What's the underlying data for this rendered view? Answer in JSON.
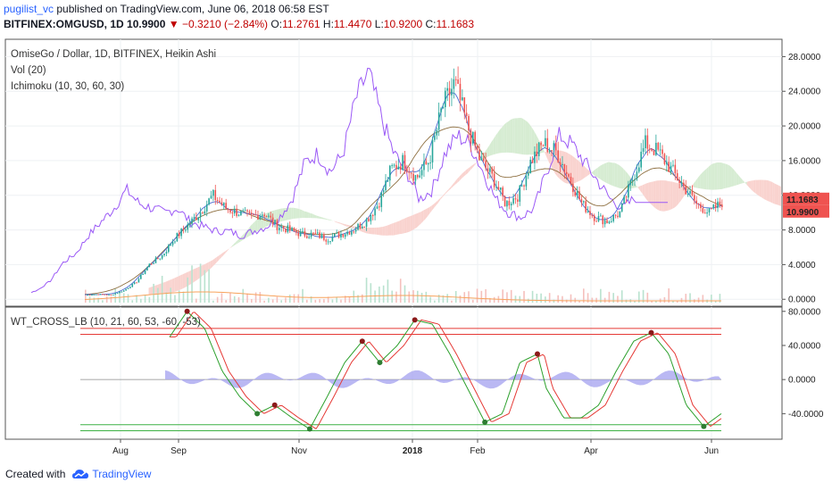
{
  "header": {
    "author": "pugilist_vc",
    "published": "published on TradingView.com, June 06, 2018 06:58 EST",
    "symbol": "BITFINEX:OMGUSD, 1D",
    "close_value": "10.9900",
    "change_arrow": "▼",
    "change": "−0.3210 (−2.84%)",
    "o_label": "O:",
    "o_value": "11.2761",
    "h_label": "H:",
    "h_value": "11.4470",
    "l_label": "L:",
    "l_value": "10.9200",
    "c_label": "C:",
    "c_value": "11.1683"
  },
  "footer": {
    "created_with": "Created with",
    "brand": "TradingView"
  },
  "colors": {
    "up": "#26a69a",
    "down": "#ef5350",
    "purple": "#9b59f6",
    "cloud_green": "#d6ecd2",
    "cloud_red": "#f9d3cf",
    "volume_orange": "#f7a35c",
    "wt_green": "#2ca02c",
    "wt_red": "#e53935",
    "band_red": "#e53935",
    "band_green": "#3cb043"
  },
  "chart_data": [
    {
      "type": "candlestick",
      "title": "OmiseGo / Dollar, 1D, BITFINEX, Heikin Ashi",
      "indicators": [
        "Vol (20)",
        "Ichimoku (10, 30, 60, 30)"
      ],
      "y_ticks": [
        "28.0000",
        "24.0000",
        "20.0000",
        "16.0000",
        "12.0000",
        "8.0000",
        "4.0000",
        "0.0000"
      ],
      "ylim": [
        -0.8,
        30
      ],
      "last_close_label": "11.1683",
      "last_low_label": "10.9900",
      "x_labels": [
        "Aug",
        "Sep",
        "Nov",
        "2018",
        "Feb",
        "Apr",
        "Jun"
      ],
      "price_path": [
        [
          0.0,
          0.5
        ],
        [
          0.02,
          0.6
        ],
        [
          0.04,
          0.5
        ],
        [
          0.06,
          1.0
        ],
        [
          0.08,
          2.0
        ],
        [
          0.1,
          4.0
        ],
        [
          0.12,
          5.0
        ],
        [
          0.14,
          7.0
        ],
        [
          0.16,
          8.5
        ],
        [
          0.18,
          10.0
        ],
        [
          0.2,
          12.0
        ],
        [
          0.22,
          10.5
        ],
        [
          0.24,
          10.0
        ],
        [
          0.26,
          9.5
        ],
        [
          0.28,
          10.0
        ],
        [
          0.3,
          8.5
        ],
        [
          0.32,
          8.0
        ],
        [
          0.34,
          7.5
        ],
        [
          0.36,
          7.5
        ],
        [
          0.38,
          7.0
        ],
        [
          0.4,
          7.5
        ],
        [
          0.42,
          8.0
        ],
        [
          0.44,
          9.0
        ],
        [
          0.46,
          11.0
        ],
        [
          0.48,
          15.0
        ],
        [
          0.5,
          16.0
        ],
        [
          0.52,
          14.0
        ],
        [
          0.54,
          16.0
        ],
        [
          0.56,
          22.0
        ],
        [
          0.58,
          25.0
        ],
        [
          0.6,
          20.0
        ],
        [
          0.62,
          16.0
        ],
        [
          0.64,
          14.0
        ],
        [
          0.66,
          11.0
        ],
        [
          0.68,
          12.0
        ],
        [
          0.7,
          16.0
        ],
        [
          0.72,
          18.0
        ],
        [
          0.74,
          17.0
        ],
        [
          0.76,
          14.0
        ],
        [
          0.78,
          11.0
        ],
        [
          0.8,
          9.5
        ],
        [
          0.82,
          9.0
        ],
        [
          0.84,
          10.0
        ],
        [
          0.86,
          14.0
        ],
        [
          0.88,
          18.0
        ],
        [
          0.9,
          17.0
        ],
        [
          0.92,
          15.0
        ],
        [
          0.94,
          13.0
        ],
        [
          0.96,
          11.0
        ],
        [
          0.98,
          10.0
        ],
        [
          1.0,
          11.2
        ]
      ]
    },
    {
      "type": "line",
      "title": "WT_CROSS_LB (10, 21, 60, 53, -60, -53)",
      "y_ticks": [
        "80.0000",
        "40.0000",
        "0.0000",
        "-40.0000"
      ],
      "ylim": [
        -70,
        85
      ],
      "levels": [
        60,
        53,
        -53,
        -60
      ],
      "wt_path": [
        [
          0.0,
          50
        ],
        [
          0.04,
          80
        ],
        [
          0.08,
          60
        ],
        [
          0.12,
          10
        ],
        [
          0.16,
          -20
        ],
        [
          0.2,
          -40
        ],
        [
          0.24,
          -30
        ],
        [
          0.28,
          -45
        ],
        [
          0.32,
          -58
        ],
        [
          0.36,
          -20
        ],
        [
          0.4,
          20
        ],
        [
          0.44,
          45
        ],
        [
          0.48,
          20
        ],
        [
          0.52,
          40
        ],
        [
          0.56,
          70
        ],
        [
          0.6,
          65
        ],
        [
          0.64,
          30
        ],
        [
          0.68,
          -10
        ],
        [
          0.72,
          -50
        ],
        [
          0.76,
          -40
        ],
        [
          0.8,
          20
        ],
        [
          0.84,
          30
        ],
        [
          0.86,
          -10
        ],
        [
          0.9,
          -45
        ],
        [
          0.94,
          -45
        ],
        [
          0.98,
          -30
        ],
        [
          1.02,
          10
        ],
        [
          1.06,
          45
        ],
        [
          1.1,
          55
        ],
        [
          1.14,
          30
        ],
        [
          1.18,
          -30
        ],
        [
          1.22,
          -55
        ],
        [
          1.26,
          -40
        ]
      ]
    }
  ]
}
